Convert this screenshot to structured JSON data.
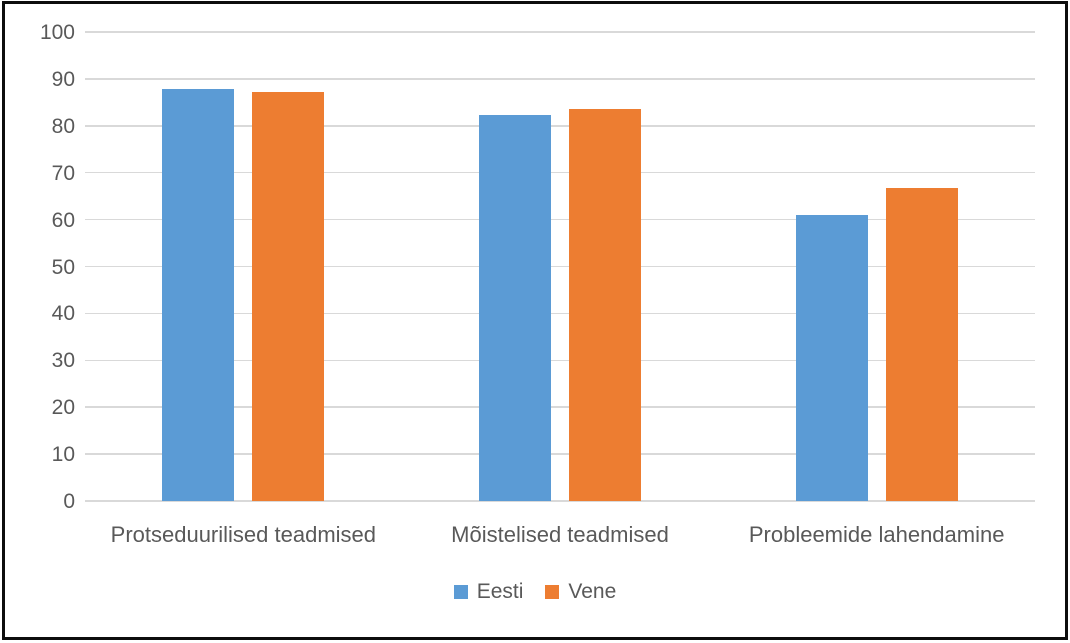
{
  "frame": {
    "background": "#ffffff",
    "border_color": "#0d0d0d"
  },
  "chart_data": {
    "type": "bar",
    "title": "",
    "xlabel": "",
    "ylabel": "",
    "categories": [
      "Protseduurilised teadmised",
      "Mõistelised teadmised",
      "Probleemide lahendamine"
    ],
    "series": [
      {
        "name": "Eesti",
        "color": "#5b9bd5",
        "values": [
          87.8,
          82.3,
          60.9
        ]
      },
      {
        "name": "Vene",
        "color": "#ed7d31",
        "values": [
          87.2,
          83.5,
          66.8
        ]
      }
    ],
    "ylim": [
      0,
      100
    ],
    "ytick_interval": 10,
    "ytick_labels": [
      "0",
      "10",
      "20",
      "30",
      "40",
      "50",
      "60",
      "70",
      "80",
      "90",
      "100"
    ],
    "grid": true,
    "gridline_color": "#d9d9d9",
    "axis_text_color": "#595959",
    "legend_position": "bottom",
    "legend_entries": [
      {
        "label": "Eesti",
        "color": "#5b9bd5"
      },
      {
        "label": "Vene",
        "color": "#ed7d31"
      }
    ]
  }
}
